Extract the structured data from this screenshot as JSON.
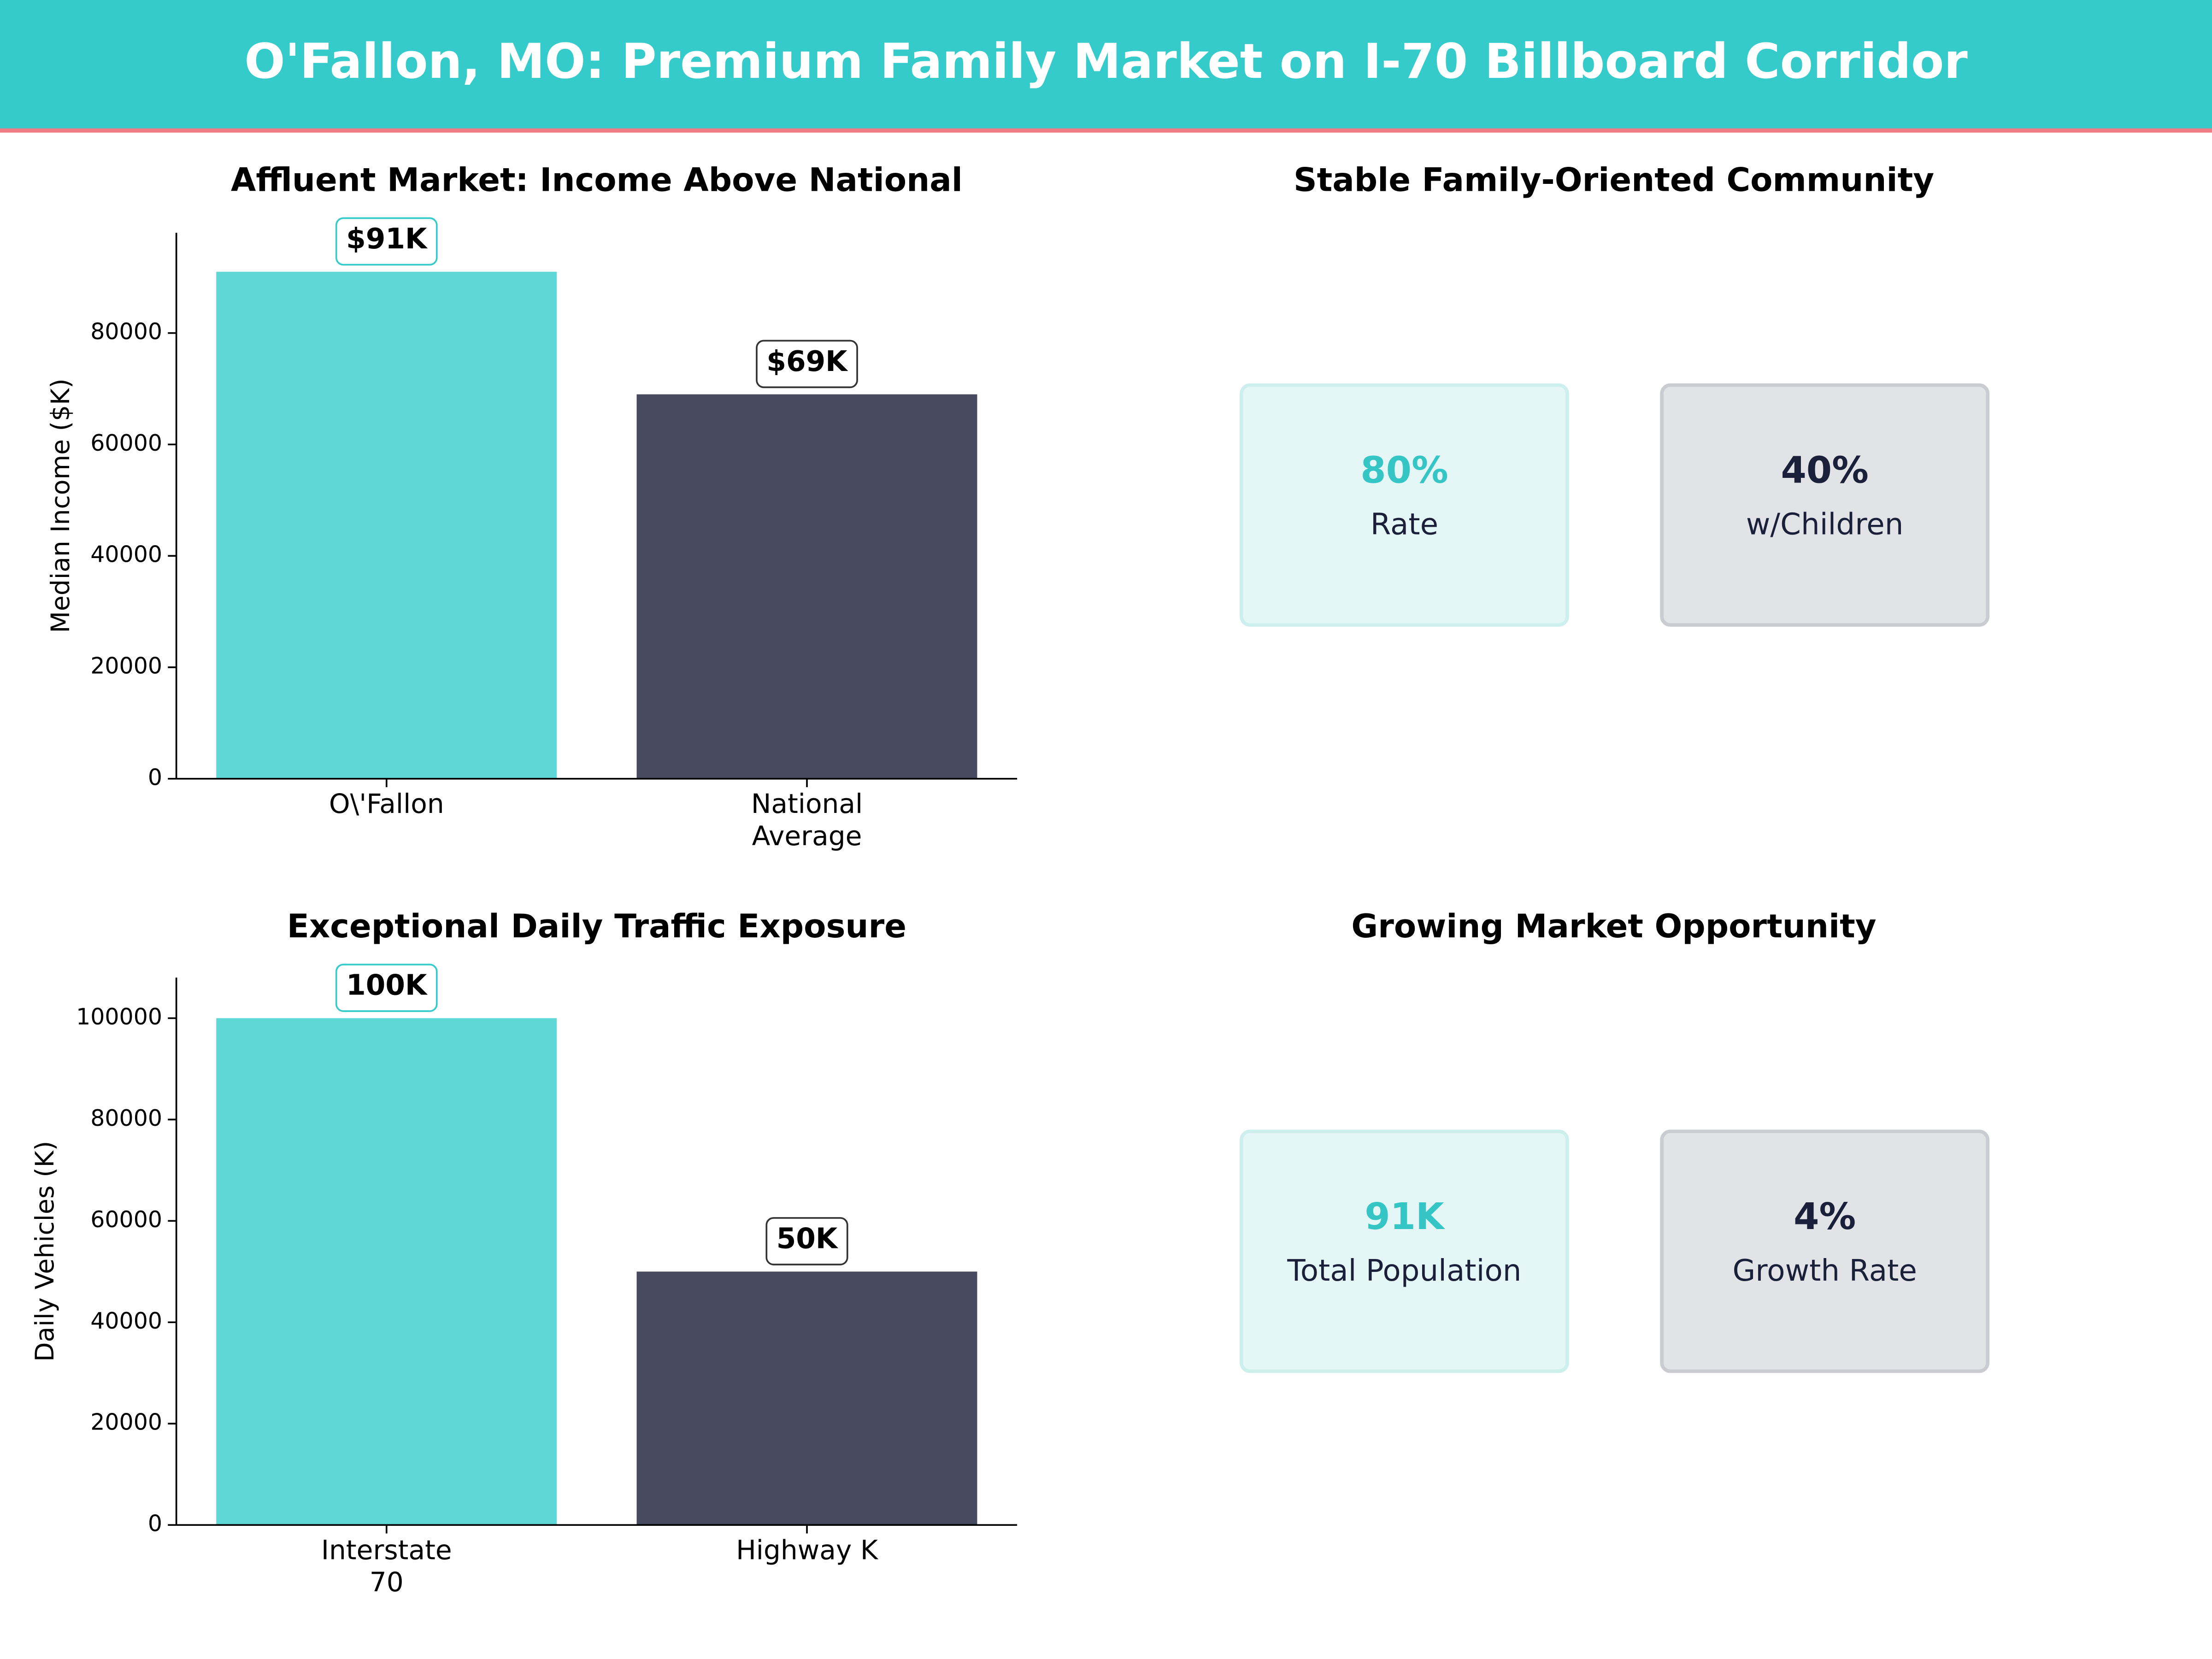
{
  "title": "O'Fallon, MO: Premium Family Market on I-70 Billboard Corridor",
  "chart_data": [
    {
      "type": "bar",
      "title": "Affluent Market: Income Above National",
      "y_label": "Median Income ($K)",
      "categories": [
        "O\\'Fallon",
        "National\nAverage"
      ],
      "values": [
        91000,
        69000
      ],
      "value_labels": [
        "$91K",
        "$69K"
      ],
      "colors": [
        "#5fd8d5",
        "#464a60"
      ],
      "ylim": [
        0,
        98000
      ],
      "yticks": [
        0,
        20000,
        40000,
        60000,
        80000
      ]
    },
    {
      "type": "kpi",
      "title": "Stable Family-Oriented Community",
      "cards": [
        {
          "value": "80%",
          "label": "Rate"
        },
        {
          "value": "40%",
          "label": "w/Children"
        }
      ]
    },
    {
      "type": "bar",
      "title": "Exceptional Daily Traffic Exposure",
      "y_label": "Daily Vehicles (K)",
      "categories": [
        "Interstate\n70",
        "Highway K"
      ],
      "values": [
        100000,
        50000
      ],
      "value_labels": [
        "100K",
        "50K"
      ],
      "colors": [
        "#5fd8d5",
        "#464a60"
      ],
      "ylim": [
        0,
        108000
      ],
      "yticks": [
        0,
        20000,
        40000,
        60000,
        80000,
        100000
      ]
    },
    {
      "type": "kpi",
      "title": "Growing Market Opportunity",
      "cards": [
        {
          "value": "91K",
          "label": "Total Population"
        },
        {
          "value": "4%",
          "label": "Growth Rate"
        }
      ]
    }
  ]
}
